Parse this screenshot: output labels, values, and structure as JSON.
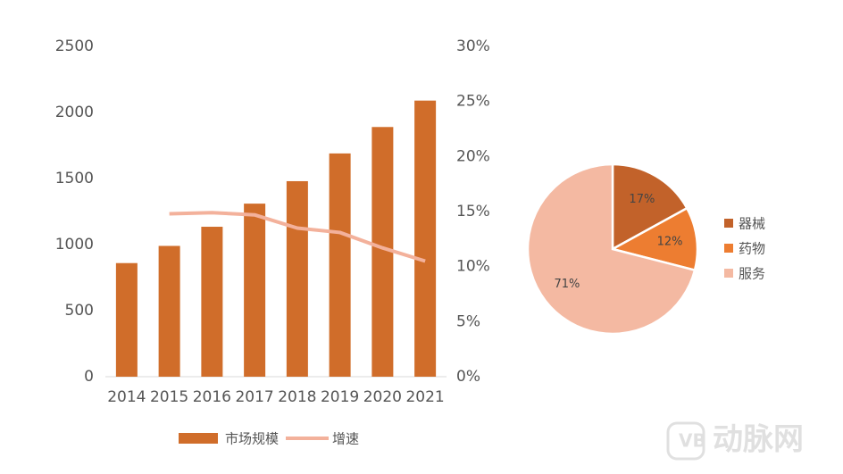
{
  "chart_data": [
    {
      "type": "bar",
      "categories": [
        "2014",
        "2015",
        "2016",
        "2017",
        "2018",
        "2019",
        "2020",
        "2021"
      ],
      "series": [
        {
          "name": "市场规模",
          "type": "bar",
          "color": "#d06d2a",
          "values": [
            860,
            990,
            1135,
            1310,
            1480,
            1690,
            1890,
            2090
          ]
        },
        {
          "name": "增速",
          "type": "line",
          "axis": "y2",
          "color": "#f3b19b",
          "values": [
            null,
            14.8,
            14.9,
            14.7,
            13.5,
            13.1,
            11.7,
            10.5
          ]
        }
      ],
      "ylim": [
        0,
        2500
      ],
      "yticks": [
        0,
        500,
        1000,
        1500,
        2000,
        2500
      ],
      "y2lim": [
        0,
        30
      ],
      "y2ticks": [
        {
          "value": 0,
          "label": "0%"
        },
        {
          "value": 5,
          "label": "5%"
        },
        {
          "value": 10,
          "label": "10%"
        },
        {
          "value": 15,
          "label": "15%"
        },
        {
          "value": 20,
          "label": "20%"
        },
        {
          "value": 25,
          "label": "25%"
        },
        {
          "value": 30,
          "label": "30%"
        }
      ],
      "legend": "bottom"
    },
    {
      "type": "pie",
      "categories": [
        "器械",
        "药物",
        "服务"
      ],
      "values": [
        17,
        12,
        71
      ],
      "value_labels": [
        "17%",
        "12%",
        "71%"
      ],
      "colors": [
        "#c2622a",
        "#ed7d31",
        "#f4b9a2"
      ],
      "legend": "right"
    }
  ],
  "watermark": "动脉网"
}
